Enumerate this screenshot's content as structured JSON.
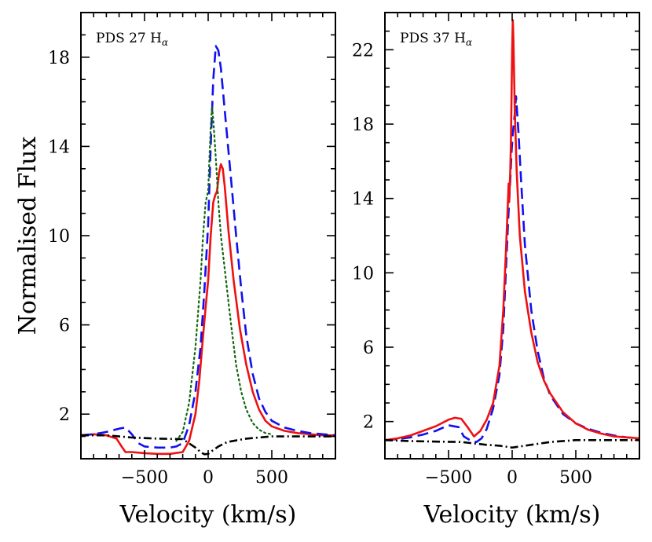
{
  "chart_data": {
    "type": "line",
    "ylabel": "Normalised Flux",
    "panels": [
      {
        "name": "pds27",
        "label_main": "PDS 27 H",
        "label_sub": "α",
        "xlabel": "Velocity (km/s)",
        "xlim": [
          -1000,
          1000
        ],
        "ylim": [
          0,
          20
        ],
        "x_ticks": [
          -500,
          0,
          500
        ],
        "x_tick_labels": [
          "−500",
          "0",
          "500"
        ],
        "x_minor_step": 100,
        "y_ticks": [
          2,
          6,
          10,
          14,
          18
        ],
        "y_tick_labels": [
          "2",
          "6",
          "10",
          "14",
          "18"
        ],
        "y_minor_step": 1,
        "series": [
          {
            "name": "red-solid",
            "color": "#ee1111",
            "style": "solid",
            "points": [
              [
                -1000,
                1.05
              ],
              [
                -900,
                1.1
              ],
              [
                -800,
                1.05
              ],
              [
                -720,
                0.9
              ],
              [
                -680,
                0.55
              ],
              [
                -650,
                0.3
              ],
              [
                -600,
                0.3
              ],
              [
                -500,
                0.25
              ],
              [
                -400,
                0.22
              ],
              [
                -300,
                0.22
              ],
              [
                -200,
                0.3
              ],
              [
                -150,
                0.8
              ],
              [
                -100,
                2.0
              ],
              [
                -70,
                3.5
              ],
              [
                -40,
                5.5
              ],
              [
                -20,
                6.8
              ],
              [
                0,
                8.0
              ],
              [
                20,
                10.0
              ],
              [
                40,
                11.5
              ],
              [
                55,
                11.8
              ],
              [
                70,
                12.0
              ],
              [
                85,
                12.8
              ],
              [
                100,
                13.2
              ],
              [
                115,
                13.0
              ],
              [
                130,
                12.2
              ],
              [
                160,
                10.2
              ],
              [
                200,
                8.0
              ],
              [
                250,
                5.8
              ],
              [
                300,
                4.2
              ],
              [
                350,
                3.0
              ],
              [
                400,
                2.2
              ],
              [
                450,
                1.7
              ],
              [
                500,
                1.45
              ],
              [
                600,
                1.25
              ],
              [
                700,
                1.15
              ],
              [
                800,
                1.1
              ],
              [
                900,
                1.05
              ],
              [
                1000,
                1.05
              ]
            ]
          },
          {
            "name": "blue-dashed",
            "color": "#1111ee",
            "style": "dashed",
            "points": [
              [
                -1000,
                1.05
              ],
              [
                -900,
                1.1
              ],
              [
                -800,
                1.2
              ],
              [
                -700,
                1.35
              ],
              [
                -650,
                1.4
              ],
              [
                -600,
                1.1
              ],
              [
                -550,
                0.7
              ],
              [
                -500,
                0.55
              ],
              [
                -400,
                0.5
              ],
              [
                -300,
                0.5
              ],
              [
                -250,
                0.55
              ],
              [
                -200,
                0.7
              ],
              [
                -150,
                1.5
              ],
              [
                -100,
                3.0
              ],
              [
                -60,
                5.0
              ],
              [
                -30,
                7.5
              ],
              [
                0,
                10.5
              ],
              [
                20,
                14.0
              ],
              [
                40,
                17.0
              ],
              [
                60,
                18.5
              ],
              [
                80,
                18.3
              ],
              [
                100,
                17.5
              ],
              [
                140,
                15.0
              ],
              [
                180,
                12.5
              ],
              [
                220,
                10.0
              ],
              [
                260,
                7.6
              ],
              [
                300,
                5.5
              ],
              [
                350,
                3.8
              ],
              [
                400,
                2.7
              ],
              [
                450,
                2.1
              ],
              [
                500,
                1.7
              ],
              [
                600,
                1.4
              ],
              [
                700,
                1.25
              ],
              [
                800,
                1.15
              ],
              [
                900,
                1.1
              ],
              [
                1000,
                1.05
              ]
            ]
          },
          {
            "name": "green-dotted",
            "color": "#116611",
            "style": "dotted",
            "points": [
              [
                -250,
                0.8
              ],
              [
                -200,
                1.2
              ],
              [
                -150,
                2.5
              ],
              [
                -100,
                5.0
              ],
              [
                -60,
                8.0
              ],
              [
                -40,
                10.0
              ],
              [
                -20,
                11.5
              ],
              [
                0,
                12.0
              ],
              [
                10,
                13.5
              ],
              [
                20,
                14.8
              ],
              [
                30,
                15.8
              ],
              [
                40,
                15.2
              ],
              [
                60,
                13.5
              ],
              [
                80,
                11.5
              ],
              [
                100,
                10.0
              ],
              [
                140,
                8.0
              ],
              [
                180,
                6.0
              ],
              [
                220,
                4.2
              ],
              [
                260,
                3.0
              ],
              [
                300,
                2.2
              ],
              [
                350,
                1.6
              ],
              [
                400,
                1.3
              ],
              [
                450,
                1.15
              ],
              [
                500,
                1.1
              ]
            ]
          },
          {
            "name": "black-dashdot",
            "color": "#000000",
            "style": "dashdot",
            "points": [
              [
                -1000,
                1.05
              ],
              [
                -800,
                1.05
              ],
              [
                -600,
                0.95
              ],
              [
                -400,
                0.9
              ],
              [
                -200,
                0.88
              ],
              [
                -100,
                0.5
              ],
              [
                -60,
                0.3
              ],
              [
                -30,
                0.2
              ],
              [
                0,
                0.22
              ],
              [
                30,
                0.35
              ],
              [
                80,
                0.55
              ],
              [
                150,
                0.75
              ],
              [
                300,
                0.9
              ],
              [
                500,
                1.0
              ],
              [
                700,
                1.0
              ],
              [
                1000,
                1.0
              ]
            ]
          }
        ]
      },
      {
        "name": "pds37",
        "label_main": "PDS 37 H",
        "label_sub": "α",
        "xlabel": "Velocity (km/s)",
        "xlim": [
          -1000,
          1000
        ],
        "ylim": [
          0,
          24
        ],
        "x_ticks": [
          -500,
          0,
          500
        ],
        "x_tick_labels": [
          "−500",
          "0",
          "500"
        ],
        "x_minor_step": 100,
        "y_ticks": [
          2,
          6,
          10,
          14,
          18,
          22
        ],
        "y_tick_labels": [
          "2",
          "6",
          "10",
          "14",
          "18",
          "22"
        ],
        "y_minor_step": 1,
        "series": [
          {
            "name": "blue-dashed",
            "color": "#1111ee",
            "style": "dashed",
            "points": [
              [
                -1000,
                1.0
              ],
              [
                -900,
                1.05
              ],
              [
                -800,
                1.15
              ],
              [
                -700,
                1.3
              ],
              [
                -600,
                1.5
              ],
              [
                -500,
                1.8
              ],
              [
                -420,
                1.7
              ],
              [
                -380,
                1.2
              ],
              [
                -320,
                0.95
              ],
              [
                -280,
                0.9
              ],
              [
                -240,
                1.1
              ],
              [
                -200,
                1.6
              ],
              [
                -150,
                2.7
              ],
              [
                -100,
                4.5
              ],
              [
                -70,
                7.0
              ],
              [
                -50,
                10.0
              ],
              [
                -30,
                13.0
              ],
              [
                -15,
                15.0
              ],
              [
                -5,
                16.5
              ],
              [
                5,
                17.5
              ],
              [
                20,
                18.5
              ],
              [
                30,
                19.5
              ],
              [
                50,
                17.5
              ],
              [
                70,
                15.0
              ],
              [
                100,
                11.5
              ],
              [
                150,
                8.0
              ],
              [
                200,
                5.8
              ],
              [
                250,
                4.3
              ],
              [
                300,
                3.4
              ],
              [
                400,
                2.4
              ],
              [
                500,
                1.9
              ],
              [
                600,
                1.6
              ],
              [
                700,
                1.4
              ],
              [
                800,
                1.25
              ],
              [
                900,
                1.15
              ],
              [
                1000,
                1.1
              ]
            ]
          },
          {
            "name": "red-solid",
            "color": "#ee1111",
            "style": "solid",
            "points": [
              [
                -1000,
                1.0
              ],
              [
                -900,
                1.1
              ],
              [
                -800,
                1.25
              ],
              [
                -700,
                1.5
              ],
              [
                -600,
                1.75
              ],
              [
                -500,
                2.1
              ],
              [
                -450,
                2.2
              ],
              [
                -400,
                2.15
              ],
              [
                -350,
                1.7
              ],
              [
                -300,
                1.2
              ],
              [
                -250,
                1.5
              ],
              [
                -200,
                2.1
              ],
              [
                -150,
                3.0
              ],
              [
                -100,
                5.0
              ],
              [
                -70,
                8.0
              ],
              [
                -50,
                11.0
              ],
              [
                -35,
                13.5
              ],
              [
                -28,
                14.8
              ],
              [
                -25,
                13.8
              ],
              [
                -20,
                14.5
              ],
              [
                -15,
                15.5
              ],
              [
                -10,
                17.0
              ],
              [
                -5,
                19.5
              ],
              [
                0,
                22.0
              ],
              [
                5,
                23.6
              ],
              [
                10,
                22.5
              ],
              [
                20,
                19.0
              ],
              [
                35,
                15.5
              ],
              [
                60,
                12.0
              ],
              [
                100,
                9.0
              ],
              [
                150,
                6.8
              ],
              [
                200,
                5.2
              ],
              [
                250,
                4.2
              ],
              [
                300,
                3.5
              ],
              [
                400,
                2.5
              ],
              [
                500,
                1.9
              ],
              [
                600,
                1.55
              ],
              [
                700,
                1.35
              ],
              [
                800,
                1.2
              ],
              [
                900,
                1.15
              ],
              [
                1000,
                1.1
              ]
            ]
          },
          {
            "name": "black-dashdot",
            "color": "#000000",
            "style": "dashdot",
            "points": [
              [
                -1000,
                1.0
              ],
              [
                -800,
                0.95
              ],
              [
                -600,
                0.92
              ],
              [
                -400,
                0.9
              ],
              [
                -200,
                0.75
              ],
              [
                -100,
                0.7
              ],
              [
                0,
                0.6
              ],
              [
                100,
                0.7
              ],
              [
                300,
                0.9
              ],
              [
                500,
                1.0
              ],
              [
                700,
                1.0
              ],
              [
                1000,
                1.0
              ]
            ]
          }
        ]
      }
    ]
  }
}
